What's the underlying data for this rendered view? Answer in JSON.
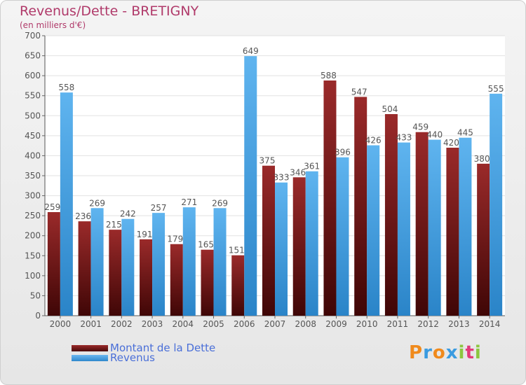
{
  "chart_data": {
    "type": "bar",
    "title": "Revenus/Dette - BRETIGNY",
    "subtitle": "(en milliers d'€)",
    "categories": [
      "2000",
      "2001",
      "2002",
      "2003",
      "2004",
      "2005",
      "2006",
      "2007",
      "2008",
      "2009",
      "2010",
      "2011",
      "2012",
      "2013",
      "2014"
    ],
    "series": [
      {
        "name": "Montant de la Dette",
        "color": "#7a1a1a",
        "values": [
          259,
          236,
          215,
          191,
          179,
          165,
          151,
          375,
          346,
          588,
          547,
          504,
          459,
          420,
          380
        ]
      },
      {
        "name": "Revenus",
        "color": "#4aa3e6",
        "values": [
          558,
          269,
          242,
          257,
          271,
          269,
          649,
          333,
          361,
          396,
          426,
          433,
          440,
          445,
          555
        ]
      }
    ],
    "ylim": [
      0,
      700
    ],
    "yticks": [
      0,
      50,
      100,
      150,
      200,
      250,
      300,
      350,
      400,
      450,
      500,
      550,
      600,
      650,
      700
    ],
    "grid": true,
    "legend_position": "bottom-left"
  },
  "logo": {
    "text": "Proxiti"
  }
}
